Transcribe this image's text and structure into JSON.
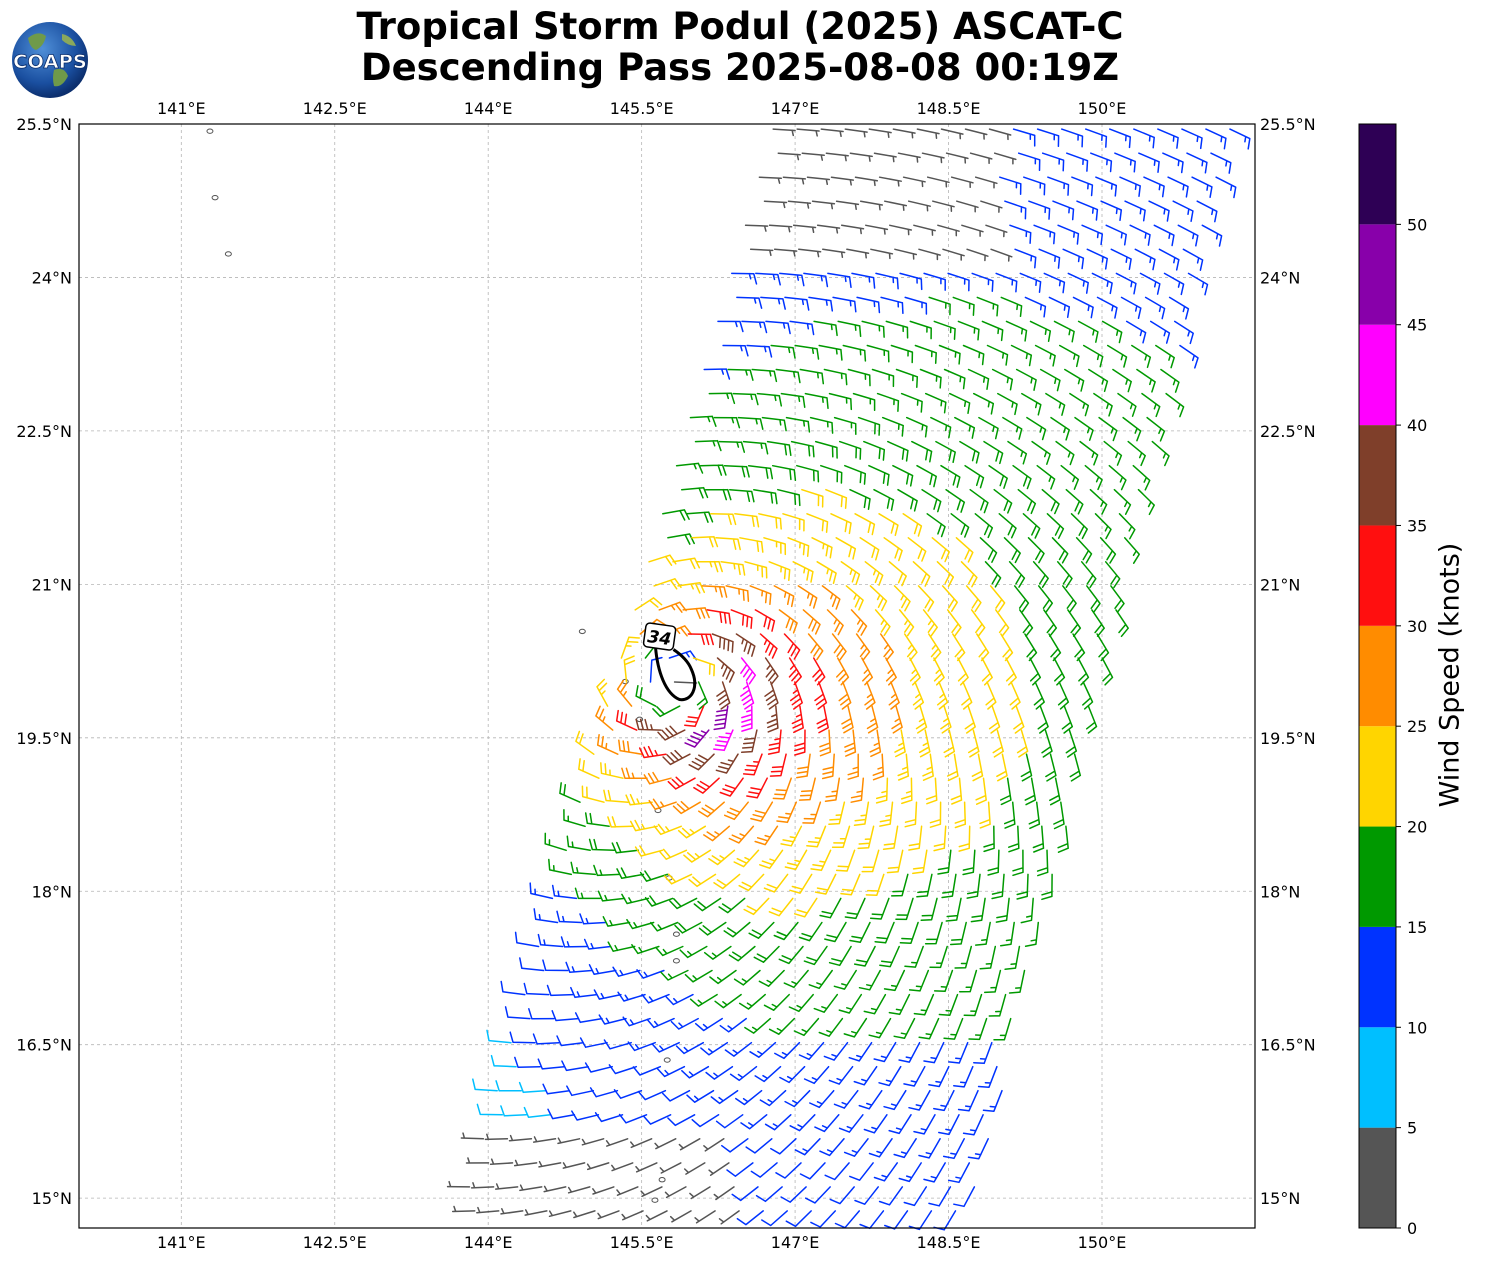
{
  "title": {
    "line1": "Tropical Storm Podul (2025) ASCAT-C",
    "line2": "Descending Pass 2025-08-08 00:19Z"
  },
  "logo": {
    "text": "COAPS",
    "icon": "globe-logo"
  },
  "map": {
    "lon_range": [
      140.0,
      151.5
    ],
    "lat_range": [
      14.7,
      25.5
    ],
    "lon_ticks": [
      {
        "value": 141.0,
        "label": "141°E"
      },
      {
        "value": 142.5,
        "label": "142.5°E"
      },
      {
        "value": 144.0,
        "label": "144°E"
      },
      {
        "value": 145.5,
        "label": "145.5°E"
      },
      {
        "value": 147.0,
        "label": "147°E"
      },
      {
        "value": 148.5,
        "label": "148.5°E"
      },
      {
        "value": 150.0,
        "label": "150°E"
      }
    ],
    "lat_ticks": [
      {
        "value": 25.5,
        "label": "25.5°N"
      },
      {
        "value": 24.0,
        "label": "24°N"
      },
      {
        "value": 22.5,
        "label": "22.5°N"
      },
      {
        "value": 21.0,
        "label": "21°N"
      },
      {
        "value": 19.5,
        "label": "19.5°N"
      },
      {
        "value": 18.0,
        "label": "18°N"
      },
      {
        "value": 16.5,
        "label": "16.5°N"
      },
      {
        "value": 15.0,
        "label": "15°N"
      }
    ],
    "grid": true,
    "storm_center": {
      "lon": 145.85,
      "lat": 20.05
    },
    "contour_label": "34",
    "swath": {
      "top_left_lon": 146.8,
      "top_right_lon": 151.3,
      "bottom_left_lon": 143.7,
      "bottom_right_lon": 148.7
    },
    "islands": [
      {
        "lon": 141.28,
        "lat": 25.43
      },
      {
        "lon": 141.33,
        "lat": 24.78
      },
      {
        "lon": 141.46,
        "lat": 24.23
      },
      {
        "lon": 144.92,
        "lat": 20.54
      },
      {
        "lon": 145.34,
        "lat": 20.05
      },
      {
        "lon": 145.48,
        "lat": 19.68
      },
      {
        "lon": 145.66,
        "lat": 18.79
      },
      {
        "lon": 145.77,
        "lat": 18.13
      },
      {
        "lon": 145.84,
        "lat": 17.58
      },
      {
        "lon": 145.84,
        "lat": 17.32
      },
      {
        "lon": 145.75,
        "lat": 16.35
      },
      {
        "lon": 145.7,
        "lat": 15.18
      },
      {
        "lon": 145.63,
        "lat": 14.98
      }
    ]
  },
  "colorbar": {
    "label": "Wind Speed (knots)",
    "bins": [
      {
        "min": 0,
        "max": 5,
        "color": "#555555"
      },
      {
        "min": 5,
        "max": 10,
        "color": "#00bfff"
      },
      {
        "min": 10,
        "max": 15,
        "color": "#0033ff"
      },
      {
        "min": 15,
        "max": 20,
        "color": "#009900"
      },
      {
        "min": 20,
        "max": 25,
        "color": "#ffd500"
      },
      {
        "min": 25,
        "max": 30,
        "color": "#ff8c00"
      },
      {
        "min": 30,
        "max": 35,
        "color": "#ff0f0f"
      },
      {
        "min": 35,
        "max": 40,
        "color": "#7f3f2a"
      },
      {
        "min": 40,
        "max": 45,
        "color": "#ff00ff"
      },
      {
        "min": 45,
        "max": 50,
        "color": "#8800aa"
      },
      {
        "min": 50,
        "max": 55,
        "color": "#2e0055"
      }
    ],
    "ticks": [
      "0",
      "5",
      "10",
      "15",
      "20",
      "25",
      "30",
      "35",
      "40",
      "45",
      "50"
    ]
  }
}
